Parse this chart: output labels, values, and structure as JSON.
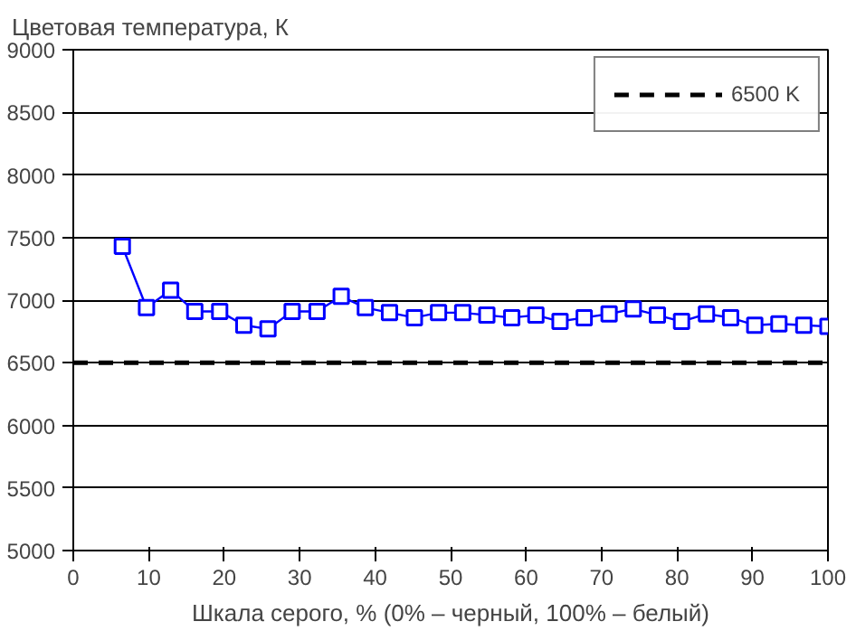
{
  "chart_data": {
    "type": "line",
    "ylabel": "Цветовая температура, К",
    "xlabel": "Шкала серого, % (0% – черный, 100% – белый)",
    "x": [
      6.5,
      9.7,
      12.9,
      16.1,
      19.4,
      22.6,
      25.8,
      29.0,
      32.3,
      35.5,
      38.7,
      41.9,
      45.2,
      48.4,
      51.6,
      54.8,
      58.1,
      61.3,
      64.5,
      67.7,
      71.0,
      74.2,
      77.4,
      80.6,
      83.9,
      87.1,
      90.3,
      93.5,
      96.8,
      100
    ],
    "series": [
      {
        "color": "#0000ff",
        "values": [
          7430,
          6940,
          7080,
          6910,
          6910,
          6800,
          6770,
          6910,
          6910,
          7030,
          6940,
          6900,
          6860,
          6900,
          6900,
          6880,
          6860,
          6880,
          6830,
          6860,
          6890,
          6930,
          6880,
          6830,
          6890,
          6860,
          6800,
          6810,
          6800,
          6790
        ]
      }
    ],
    "marker": "square",
    "ref_lines": [
      {
        "axis": "y",
        "value": 6500,
        "label": "6500 K",
        "color": "#000000",
        "line_style": "dashed"
      }
    ],
    "xlim": [
      0,
      100
    ],
    "xticks": [
      0,
      10,
      20,
      30,
      40,
      50,
      60,
      70,
      80,
      90,
      100
    ],
    "ylim": [
      5000,
      9000
    ],
    "yticks": [
      5000,
      5500,
      6000,
      6500,
      7000,
      7500,
      8000,
      8500,
      9000
    ],
    "grid": "y",
    "legend": "top right"
  }
}
